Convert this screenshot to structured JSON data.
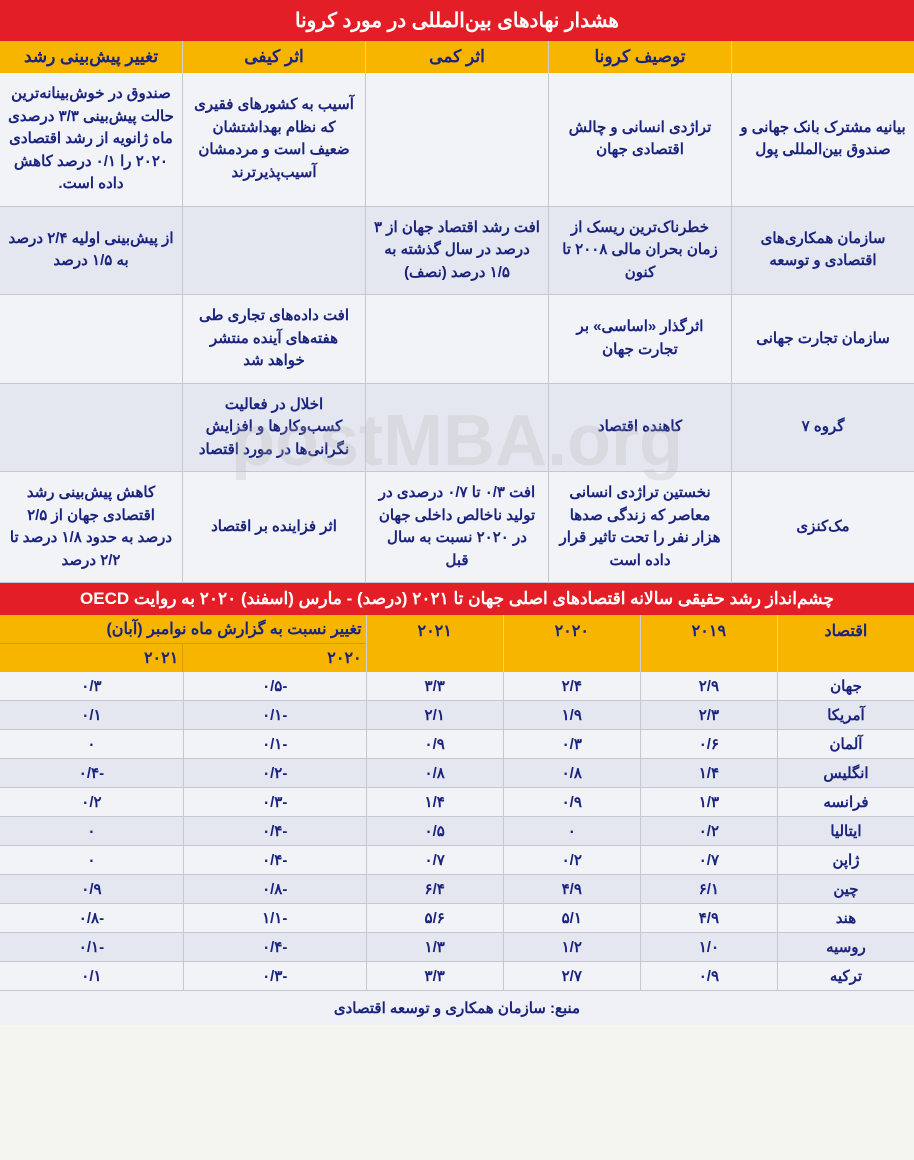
{
  "colors": {
    "title_bg": "#e41e26",
    "title_text": "#ffffff",
    "header_bg": "#f7b500",
    "header_text": "#1a237e",
    "cell_text": "#1a237e",
    "row_alt_bg": "#e4e7ef",
    "row_norm_bg": "#f2f3f7",
    "border": "#c5c8d0"
  },
  "watermark": "postMBA.org",
  "table1": {
    "title": "هشدار نهادهای بین‌المللی در مورد کرونا",
    "headers": [
      "",
      "توصیف کرونا",
      "اثر کمی",
      "اثر کیفی",
      "تغییر پیش‌بینی رشد"
    ],
    "rows": [
      {
        "org": "بیانیه مشترک بانک جهانی و صندوق بین‌المللی پول",
        "desc": "تراژدی انسانی و چالش اقتصادی جهان",
        "quant": "",
        "qual": "آسیب به کشورهای فقیری که نظام بهداشتشان ضعیف است و مردمشان آسیب‌پذیرترند",
        "growth": "صندوق در خوش‌بینانه‌ترین حالت پیش‌بینی ۳/۳ درصدی ماه ژانویه از رشد اقتصادی ۲۰۲۰ را ۰/۱ درصد کاهش داده است."
      },
      {
        "org": "سازمان همکاری‌های اقتصادی و توسعه",
        "desc": "خطرناک‌ترین ریسک از زمان بحران مالی ۲۰۰۸ تا کنون",
        "quant": "افت رشد اقتصاد جهان از ۳ درصد در سال گذشته به ۱/۵ درصد (نصف)",
        "qual": "",
        "growth": "از پیش‌بینی اولیه ۲/۴ درصد به ۱/۵ درصد"
      },
      {
        "org": "سازمان تجارت جهانی",
        "desc": "اثرگذار «اساسی» بر تجارت جهان",
        "quant": "",
        "qual": "افت داده‌های تجاری طی هفته‌های آینده منتشر خواهد شد",
        "growth": ""
      },
      {
        "org": "گروه ۷",
        "desc": "کاهنده اقتصاد",
        "quant": "",
        "qual": "اخلال در فعالیت کسب‌وکارها و افزایش نگرانی‌ها در مورد اقتصاد",
        "growth": ""
      },
      {
        "org": "مک‌کنزی",
        "desc": "نخستین تراژدی انسانی معاصر که زندگی صدها هزار نفر را تحت تاثیر قرار داده است",
        "quant": "افت ۰/۳ تا ۰/۷ درصدی در تولید ناخالص داخلی جهان در ۲۰۲۰ نسبت به سال قبل",
        "qual": "اثر فزاینده بر اقتصاد",
        "growth": "کاهش پیش‌بینی رشد اقتصادی جهان از ۲/۵ درصد به حدود ۱/۸ درصد تا ۲/۲ درصد"
      }
    ]
  },
  "table2": {
    "title": "چشم‌انداز رشد حقیقی سالانه اقتصادهای اصلی جهان تا ۲۰۲۱ (درصد) - مارس (اسفند) ۲۰۲۰ به روایت OECD",
    "h_econ": "اقتصاد",
    "h_2019": "۲۰۱۹",
    "h_2020": "۲۰۲۰",
    "h_2021": "۲۰۲۱",
    "h_change": "تغییر نسبت به گزارش ماه نوامبر (آبان)",
    "h_ch_2020": "۲۰۲۰",
    "h_ch_2021": "۲۰۲۱",
    "rows": [
      {
        "econ": "جهان",
        "y19": "۲/۹",
        "y20": "۲/۴",
        "y21": "۳/۳",
        "c20": "-۰/۵",
        "c21": "۰/۳"
      },
      {
        "econ": "آمریکا",
        "y19": "۲/۳",
        "y20": "۱/۹",
        "y21": "۲/۱",
        "c20": "-۰/۱",
        "c21": "۰/۱"
      },
      {
        "econ": "آلمان",
        "y19": "۰/۶",
        "y20": "۰/۳",
        "y21": "۰/۹",
        "c20": "-۰/۱",
        "c21": "۰"
      },
      {
        "econ": "انگلیس",
        "y19": "۱/۴",
        "y20": "۰/۸",
        "y21": "۰/۸",
        "c20": "-۰/۲",
        "c21": "-۰/۴"
      },
      {
        "econ": "فرانسه",
        "y19": "۱/۳",
        "y20": "۰/۹",
        "y21": "۱/۴",
        "c20": "-۰/۳",
        "c21": "۰/۲"
      },
      {
        "econ": "ایتالیا",
        "y19": "۰/۲",
        "y20": "۰",
        "y21": "۰/۵",
        "c20": "-۰/۴",
        "c21": "۰"
      },
      {
        "econ": "ژاپن",
        "y19": "۰/۷",
        "y20": "۰/۲",
        "y21": "۰/۷",
        "c20": "-۰/۴",
        "c21": "۰"
      },
      {
        "econ": "چین",
        "y19": "۶/۱",
        "y20": "۴/۹",
        "y21": "۶/۴",
        "c20": "-۰/۸",
        "c21": "۰/۹"
      },
      {
        "econ": "هند",
        "y19": "۴/۹",
        "y20": "۵/۱",
        "y21": "۵/۶",
        "c20": "-۱/۱",
        "c21": "-۰/۸"
      },
      {
        "econ": "روسیه",
        "y19": "۱/۰",
        "y20": "۱/۲",
        "y21": "۱/۳",
        "c20": "-۰/۴",
        "c21": "-۰/۱"
      },
      {
        "econ": "ترکیه",
        "y19": "۰/۹",
        "y20": "۲/۷",
        "y21": "۳/۳",
        "c20": "-۰/۳",
        "c21": "۰/۱"
      }
    ],
    "footer": "منبع: سازمان همکاری و توسعه اقتصادی"
  }
}
